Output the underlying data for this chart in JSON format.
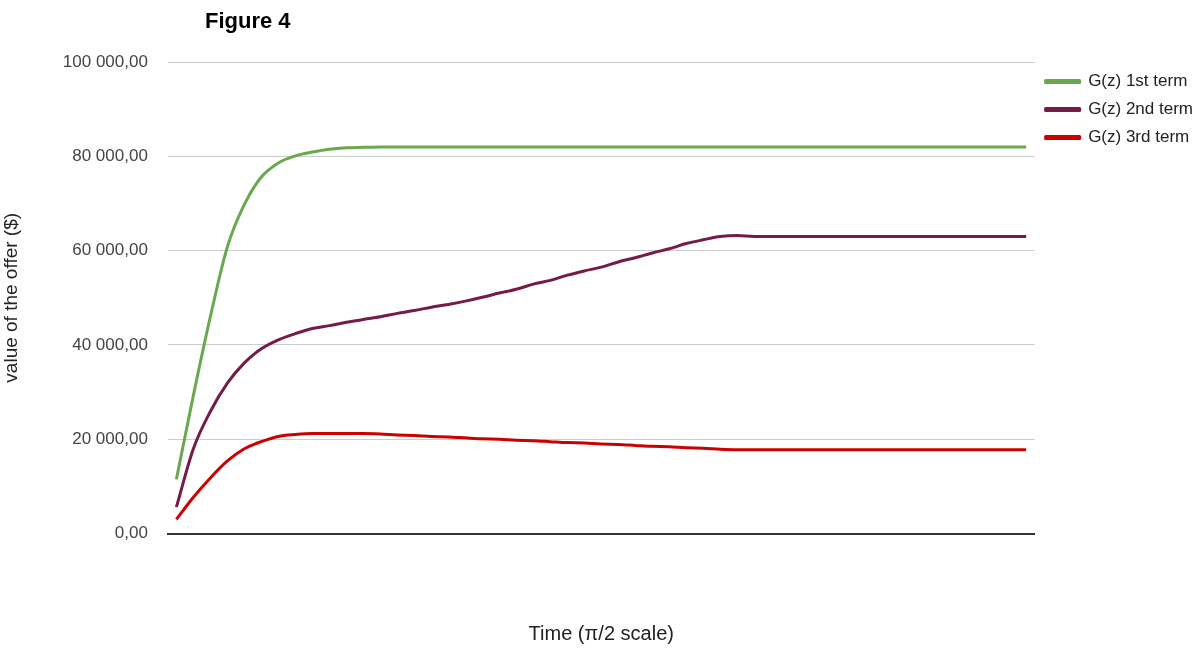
{
  "chart_data": {
    "type": "line",
    "title": "Figure 4",
    "xlabel": "Time (π/2 scale)",
    "ylabel": "value of the offer ($)",
    "categories": [
      null,
      null,
      null,
      null,
      null,
      null,
      null,
      null,
      null,
      null,
      null,
      null,
      null,
      null,
      null,
      null,
      null,
      null,
      null,
      null,
      null,
      null,
      null,
      null,
      null,
      null,
      null,
      null,
      null,
      null,
      null,
      null,
      null,
      null,
      null,
      null,
      null,
      null,
      null,
      null,
      null,
      null,
      null,
      null,
      null,
      null,
      null,
      null,
      null,
      null,
      null
    ],
    "series": [
      {
        "name": "G(z) 1st term",
        "color": "#6aa84f",
        "values": [
          11500,
          29300,
          46000,
          60800,
          69800,
          75600,
          78600,
          80100,
          80900,
          81500,
          81800,
          81900,
          82000,
          82000,
          82000,
          82000,
          82000,
          82000,
          82000,
          82000,
          82000,
          82000,
          82000,
          82000,
          82000,
          82000,
          82000,
          82000,
          82000,
          82000,
          82000,
          82000,
          82000,
          82000,
          82000,
          82000,
          82000,
          82000,
          82000,
          82000,
          82000,
          82000,
          82000,
          82000,
          82000,
          82000,
          82000,
          82000,
          82000,
          82000,
          82000
        ]
      },
      {
        "name": "G(z) 2nd term",
        "color": "#741b47",
        "values": [
          5600,
          18000,
          25900,
          31900,
          36200,
          39200,
          41100,
          42400,
          43500,
          44100,
          44800,
          45400,
          46000,
          46700,
          47300,
          48000,
          48600,
          49300,
          50100,
          51000,
          51800,
          52900,
          53700,
          54800,
          55700,
          56500,
          57600,
          58500,
          59500,
          60400,
          61500,
          62300,
          63000,
          63200,
          63000,
          63000,
          63000,
          63000,
          63000,
          63000,
          63000,
          63000,
          63000,
          63000,
          63000,
          63000,
          63000,
          63000,
          63000,
          63000,
          63000
        ]
      },
      {
        "name": "G(z) 3rd term",
        "color": "#cc0000",
        "values": [
          3000,
          7700,
          11800,
          15400,
          18000,
          19500,
          20600,
          21000,
          21200,
          21200,
          21200,
          21200,
          21100,
          20900,
          20800,
          20600,
          20500,
          20300,
          20100,
          20000,
          19800,
          19700,
          19500,
          19300,
          19200,
          19000,
          18900,
          18700,
          18500,
          18400,
          18200,
          18100,
          17900,
          17800,
          17800,
          17800,
          17800,
          17800,
          17800,
          17800,
          17800,
          17800,
          17800,
          17800,
          17800,
          17800,
          17800,
          17800,
          17800,
          17800,
          17800
        ]
      }
    ],
    "ylim": [
      0,
      100000
    ],
    "yticks": [
      {
        "value": 0,
        "label": "0,00"
      },
      {
        "value": 20000,
        "label": "20 000,00"
      },
      {
        "value": 40000,
        "label": "40 000,00"
      },
      {
        "value": 60000,
        "label": "60 000,00"
      },
      {
        "value": 80000,
        "label": "80 000,00"
      },
      {
        "value": 100000,
        "label": "100 000,00"
      }
    ],
    "grid": "y",
    "legend": "top right",
    "marker": "none",
    "line_style": "solid"
  }
}
